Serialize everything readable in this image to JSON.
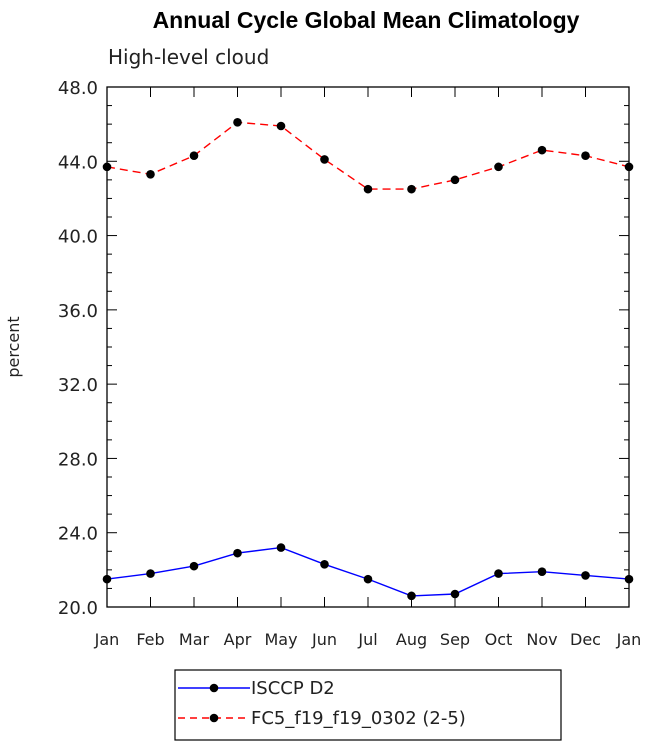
{
  "chart_data": {
    "type": "line",
    "title": "Annual Cycle Global Mean Climatology",
    "subtitle": "High-level cloud",
    "xlabel": "",
    "ylabel": "percent",
    "categories": [
      "Jan",
      "Feb",
      "Mar",
      "Apr",
      "May",
      "Jun",
      "Jul",
      "Aug",
      "Sep",
      "Oct",
      "Nov",
      "Dec",
      "Jan"
    ],
    "ylim": [
      20.0,
      48.0
    ],
    "yticks": [
      "20.0",
      "24.0",
      "28.0",
      "32.0",
      "36.0",
      "40.0",
      "44.0",
      "48.0"
    ],
    "grid": false,
    "legend_position": "bottom",
    "series": [
      {
        "name": "ISCCP D2",
        "color": "#0000ff",
        "dash": "solid",
        "values": [
          21.5,
          21.8,
          22.2,
          22.9,
          23.2,
          22.3,
          21.5,
          20.6,
          20.7,
          21.8,
          21.9,
          21.7,
          21.5
        ]
      },
      {
        "name": "FC5_f19_f19_0302 (2-5)",
        "color": "#ff0000",
        "dash": "dashed",
        "values": [
          43.7,
          43.3,
          44.3,
          46.1,
          45.9,
          44.1,
          42.5,
          42.5,
          43.0,
          43.7,
          44.6,
          44.3,
          43.7
        ]
      }
    ]
  }
}
